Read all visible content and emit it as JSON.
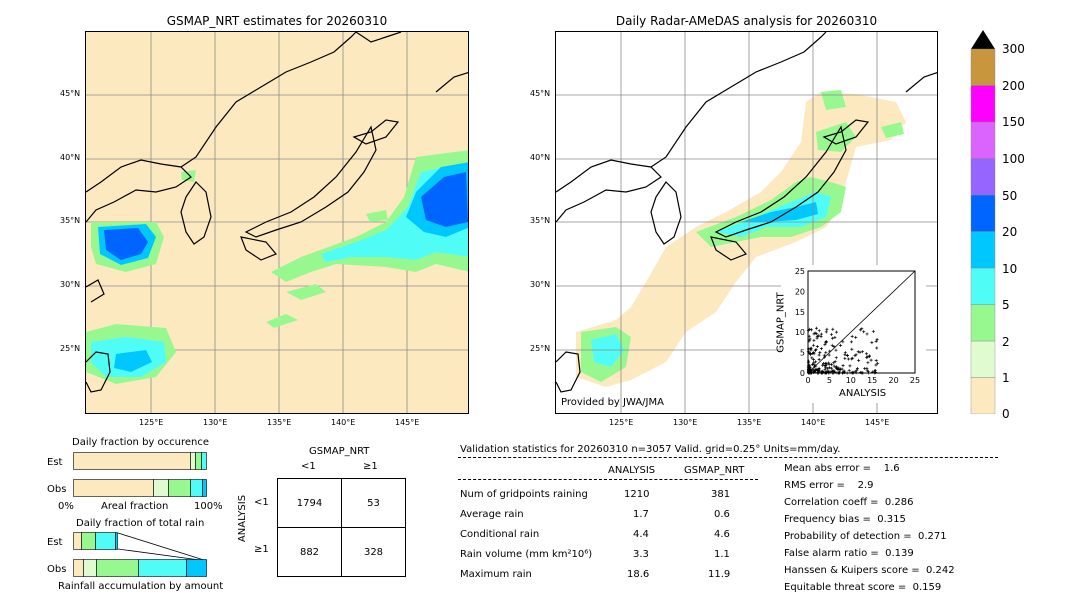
{
  "left_map": {
    "title": "GSMAP_NRT estimates for 20260310",
    "lat_labels": [
      "45°N",
      "40°N",
      "35°N",
      "30°N",
      "25°N"
    ],
    "lon_labels": [
      "125°E",
      "130°E",
      "135°E",
      "140°E",
      "145°E"
    ]
  },
  "right_map": {
    "title": "Daily Radar-AMeDAS analysis for 20260310",
    "lat_labels": [
      "45°N",
      "40°N",
      "35°N",
      "30°N",
      "25°N"
    ],
    "lon_labels": [
      "125°E",
      "130°E",
      "135°E",
      "140°E",
      "145°E"
    ],
    "credit": "Provided by JWA/JMA"
  },
  "colorbar": {
    "labels": [
      "0",
      "1",
      "2",
      "5",
      "10",
      "20",
      "50",
      "100",
      "150",
      "200",
      "300"
    ],
    "colors": [
      "#fde9c0",
      "#e0fbd0",
      "#98f890",
      "#50fdf6",
      "#00c8fe",
      "#0064fe",
      "#9664fe",
      "#dc64fe",
      "#fe00fe",
      "#c8963c"
    ]
  },
  "chart_data": [
    {
      "type": "scatter",
      "title": "",
      "xlabel": "ANALYSIS",
      "ylabel": "GSMAP_NRT",
      "xlim": [
        0,
        25
      ],
      "ylim": [
        0,
        25
      ],
      "xticks": [
        "0",
        "5",
        "10",
        "15",
        "20",
        "25"
      ],
      "yticks": [
        "0",
        "5",
        "10",
        "15",
        "20",
        "25"
      ],
      "note": "dense cluster of points near origin; diagonal reference line"
    }
  ],
  "occurrence": {
    "title": "Daily fraction by occurence",
    "row_est": "Est",
    "row_obs": "Obs",
    "axis_left": "0%",
    "axis_mid": "Areal fraction",
    "axis_right": "100%"
  },
  "total_rain": {
    "title": "Daily fraction of total rain",
    "row_est": "Est",
    "row_obs": "Obs",
    "footer": "Rainfall accumulation by amount"
  },
  "contingency": {
    "header": "GSMAP_NRT",
    "col_lt": "<1",
    "col_ge": "≥1",
    "side": "ANALYSIS",
    "row_lt": "<1",
    "row_ge": "≥1",
    "cells": [
      "1794",
      "53",
      "882",
      "328"
    ]
  },
  "validation": {
    "header": "Validation statistics for 20260310  n=3057 Valid. grid=0.25° Units=mm/day.",
    "col_analysis": "ANALYSIS",
    "col_gsmap": "GSMAP_NRT",
    "rows": [
      {
        "label": "Num of gridpoints raining",
        "analysis": "1210",
        "gsmap": "381"
      },
      {
        "label": "Average rain",
        "analysis": "1.7",
        "gsmap": "0.6"
      },
      {
        "label": "Conditional rain",
        "analysis": "4.4",
        "gsmap": "4.6"
      },
      {
        "label": "Rain volume (mm km²10⁶)",
        "analysis": "3.3",
        "gsmap": "1.1"
      },
      {
        "label": "Maximum rain",
        "analysis": "18.6",
        "gsmap": "11.9"
      }
    ],
    "scores": [
      "Mean abs error =    1.6",
      "RMS error =    2.9",
      "Correlation coeff =  0.286",
      "Frequency bias =  0.315",
      "Probability of detection =  0.271",
      "False alarm ratio =  0.139",
      "Hanssen & Kuipers score =  0.242",
      "Equitable threat score =  0.159"
    ]
  }
}
